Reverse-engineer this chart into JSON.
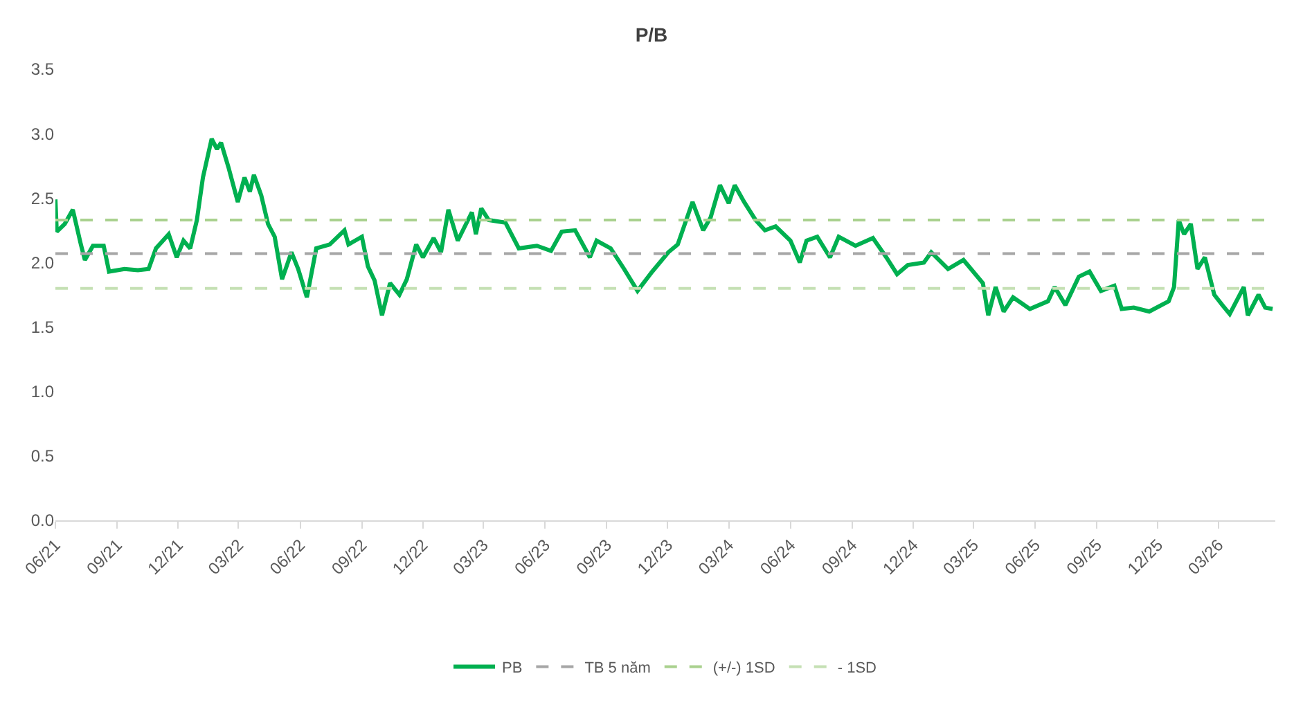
{
  "chart_data": {
    "type": "line",
    "title": "P/B",
    "x": [
      "2021-06-01",
      "2021-06-03",
      "2021-06-15",
      "2021-06-27",
      "2021-07-09",
      "2021-07-15",
      "2021-07-27",
      "2021-08-12",
      "2021-08-20",
      "2021-09-12",
      "2021-10-02",
      "2021-10-18",
      "2021-10-29",
      "2021-11-17",
      "2021-11-29",
      "2021-12-09",
      "2021-12-19",
      "2021-12-29",
      "2022-01-07",
      "2022-01-20",
      "2022-01-28",
      "2022-02-03",
      "2022-02-14",
      "2022-02-28",
      "2022-03-10",
      "2022-03-18",
      "2022-03-24",
      "2022-04-04",
      "2022-04-14",
      "2022-04-24",
      "2022-05-05",
      "2022-05-19",
      "2022-05-29",
      "2022-06-11",
      "2022-06-25",
      "2022-07-15",
      "2022-08-06",
      "2022-08-12",
      "2022-09-01",
      "2022-09-10",
      "2022-09-20",
      "2022-10-01",
      "2022-10-13",
      "2022-10-27",
      "2022-11-07",
      "2022-11-21",
      "2022-12-01",
      "2022-12-17",
      "2022-12-28",
      "2023-01-08",
      "2023-01-22",
      "2023-02-12",
      "2023-02-18",
      "2023-02-26",
      "2023-03-09",
      "2023-04-03",
      "2023-04-23",
      "2023-05-20",
      "2023-06-10",
      "2023-06-26",
      "2023-07-16",
      "2023-08-07",
      "2023-08-17",
      "2023-09-07",
      "2023-09-27",
      "2023-10-17",
      "2023-11-08",
      "2023-12-02",
      "2023-12-16",
      "2024-01-07",
      "2024-01-23",
      "2024-02-03",
      "2024-02-17",
      "2024-03-01",
      "2024-03-10",
      "2024-03-24",
      "2024-04-10",
      "2024-04-24",
      "2024-05-10",
      "2024-06-01",
      "2024-06-15",
      "2024-06-25",
      "2024-07-11",
      "2024-07-30",
      "2024-08-12",
      "2024-09-06",
      "2024-10-02",
      "2024-10-22",
      "2024-11-07",
      "2024-11-23",
      "2024-12-17",
      "2024-12-28",
      "2025-01-22",
      "2025-02-14",
      "2025-03-15",
      "2025-03-23",
      "2025-04-03",
      "2025-04-15",
      "2025-04-29",
      "2025-05-24",
      "2025-06-20",
      "2025-06-30",
      "2025-07-16",
      "2025-08-05",
      "2025-08-21",
      "2025-09-07",
      "2025-09-27",
      "2025-10-08",
      "2025-10-26",
      "2025-11-18",
      "2025-12-17",
      "2025-12-25",
      "2026-01-01",
      "2026-01-09",
      "2026-01-19",
      "2026-01-29",
      "2026-02-09",
      "2026-02-23",
      "2026-03-07",
      "2026-03-18",
      "2026-04-08",
      "2026-04-14",
      "2026-04-30",
      "2026-05-10",
      "2026-05-21"
    ],
    "series": [
      {
        "name": "PB",
        "color": "#00b050",
        "values": [
          2.49,
          2.24,
          2.3,
          2.41,
          2.14,
          2.02,
          2.13,
          2.13,
          1.93,
          1.95,
          1.94,
          1.95,
          2.11,
          2.22,
          2.04,
          2.17,
          2.11,
          2.33,
          2.66,
          2.96,
          2.88,
          2.93,
          2.74,
          2.47,
          2.66,
          2.55,
          2.68,
          2.52,
          2.3,
          2.2,
          1.87,
          2.08,
          1.95,
          1.73,
          2.11,
          2.14,
          2.25,
          2.14,
          2.2,
          1.97,
          1.86,
          1.59,
          1.84,
          1.75,
          1.87,
          2.14,
          2.04,
          2.19,
          2.08,
          2.41,
          2.17,
          2.39,
          2.22,
          2.42,
          2.33,
          2.31,
          2.11,
          2.13,
          2.09,
          2.24,
          2.25,
          2.04,
          2.17,
          2.11,
          1.95,
          1.78,
          1.93,
          2.08,
          2.14,
          2.47,
          2.25,
          2.35,
          2.6,
          2.46,
          2.6,
          2.47,
          2.33,
          2.25,
          2.28,
          2.17,
          2.0,
          2.17,
          2.2,
          2.04,
          2.2,
          2.13,
          2.19,
          2.04,
          1.91,
          1.98,
          2.0,
          2.08,
          1.95,
          2.02,
          1.84,
          1.59,
          1.81,
          1.62,
          1.73,
          1.64,
          1.7,
          1.81,
          1.67,
          1.89,
          1.93,
          1.78,
          1.82,
          1.64,
          1.65,
          1.62,
          1.7,
          1.81,
          2.33,
          2.22,
          2.3,
          1.95,
          2.04,
          1.75,
          1.67,
          1.6,
          1.81,
          1.59,
          1.75,
          1.65,
          1.64
        ]
      }
    ],
    "ref_lines": [
      {
        "axis": "y",
        "value": 2.07,
        "label": "TB 5 năm",
        "color": "#a6a6a6",
        "line_style": "dashed"
      },
      {
        "axis": "y",
        "value": 2.33,
        "label": "(+/-) 1SD",
        "color": "#a9d18e",
        "line_style": "dashed"
      },
      {
        "axis": "y",
        "value": 1.8,
        "label": "- 1SD",
        "color": "#c5e0b4",
        "line_style": "dashed"
      }
    ],
    "xlim": [
      "2021-06-01",
      "2026-05-25"
    ],
    "xticks": [
      {
        "value": "2021-06-01",
        "label": "06/21"
      },
      {
        "value": "2021-09-01",
        "label": "09/21"
      },
      {
        "value": "2021-12-01",
        "label": "12/21"
      },
      {
        "value": "2022-03-01",
        "label": "03/22"
      },
      {
        "value": "2022-06-01",
        "label": "06/22"
      },
      {
        "value": "2022-09-01",
        "label": "09/22"
      },
      {
        "value": "2022-12-01",
        "label": "12/22"
      },
      {
        "value": "2023-03-01",
        "label": "03/23"
      },
      {
        "value": "2023-06-01",
        "label": "06/23"
      },
      {
        "value": "2023-09-01",
        "label": "09/23"
      },
      {
        "value": "2023-12-01",
        "label": "12/23"
      },
      {
        "value": "2024-03-01",
        "label": "03/24"
      },
      {
        "value": "2024-06-01",
        "label": "06/24"
      },
      {
        "value": "2024-09-01",
        "label": "09/24"
      },
      {
        "value": "2024-12-01",
        "label": "12/24"
      },
      {
        "value": "2025-03-01",
        "label": "03/25"
      },
      {
        "value": "2025-06-01",
        "label": "06/25"
      },
      {
        "value": "2025-09-01",
        "label": "09/25"
      },
      {
        "value": "2025-12-01",
        "label": "12/25"
      },
      {
        "value": "2026-03-01",
        "label": "03/26"
      }
    ],
    "ylim": [
      0,
      3.5
    ],
    "yticks": [
      {
        "value": 0,
        "label": "0.0"
      },
      {
        "value": 0.5,
        "label": "0.5"
      },
      {
        "value": 1,
        "label": "1.0"
      },
      {
        "value": 1.5,
        "label": "1.5"
      },
      {
        "value": 2,
        "label": "2.0"
      },
      {
        "value": 2.5,
        "label": "2.5"
      },
      {
        "value": 3,
        "label": "3.0"
      },
      {
        "value": 3.5,
        "label": "3.5"
      }
    ],
    "grid": false,
    "legend": "bottom",
    "marker": "none",
    "line_style": "solid"
  }
}
